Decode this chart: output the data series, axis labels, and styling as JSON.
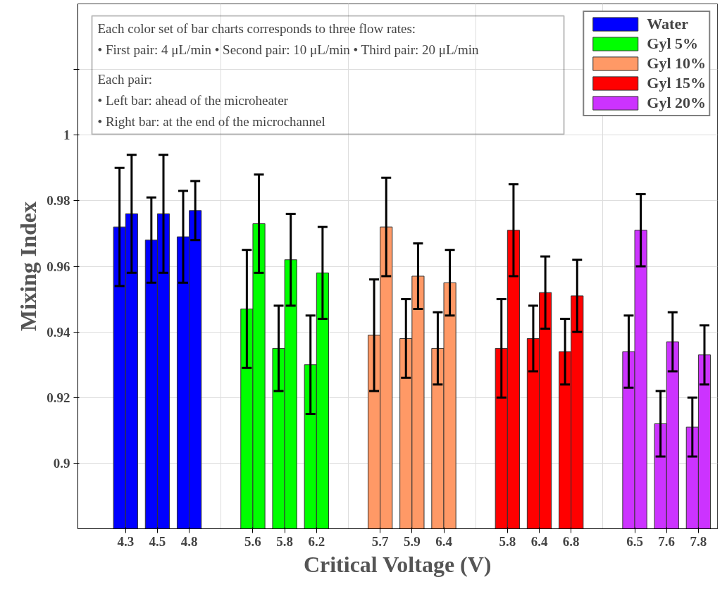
{
  "chart_data": {
    "type": "bar",
    "xlabel": "Critical Voltage (V)",
    "ylabel": "Mixing Index",
    "categories": [
      "4.3",
      "4.5",
      "4.8",
      null,
      "5.6",
      "5.8",
      "6.2",
      null,
      "5.7",
      "5.9",
      "6.4",
      null,
      "5.8",
      "6.4",
      "6.8",
      null,
      "6.5",
      "7.6",
      "7.8"
    ],
    "ylim": [
      0.88,
      1.04
    ],
    "yticks": [
      0.9,
      0.92,
      0.94,
      0.96,
      0.98,
      1,
      {
        "value": 1.02,
        "label": null
      }
    ],
    "grid": true,
    "legend": "top right",
    "annotations": [
      "Each color set of bar charts corresponds to three flow rates:",
      "• First pair: 4 μL/min     • Second pair: 10 μL/min     • Third pair: 20 μL/min",
      "Each pair:",
      "• Left bar: ahead of the microheater",
      "• Right bar: at the end of the microchannel"
    ],
    "series": [
      {
        "name": "Water",
        "color": "#0000ff",
        "values": [
          0.972,
          0.968,
          0.969,
          null,
          null,
          null,
          null,
          null,
          null,
          null,
          null,
          null,
          null,
          null,
          null,
          null,
          null,
          null,
          null
        ],
        "errors": [
          0.018,
          0.013,
          0.014,
          null,
          null,
          null,
          null,
          null,
          null,
          null,
          null,
          null,
          null,
          null,
          null,
          null,
          null,
          null,
          null
        ]
      },
      {
        "color": "#0000ff",
        "values": [
          0.976,
          0.976,
          0.977,
          null,
          null,
          null,
          null,
          null,
          null,
          null,
          null,
          null,
          null,
          null,
          null,
          null,
          null,
          null,
          null
        ],
        "errors": [
          0.018,
          0.018,
          0.009,
          null,
          null,
          null,
          null,
          null,
          null,
          null,
          null,
          null,
          null,
          null,
          null,
          null,
          null,
          null,
          null
        ]
      },
      {
        "name": "Gyl 5%",
        "color": "#00ff00",
        "values": [
          null,
          null,
          null,
          null,
          0.947,
          0.935,
          0.93,
          null,
          null,
          null,
          null,
          null,
          null,
          null,
          null,
          null,
          null,
          null,
          null
        ],
        "errors": [
          null,
          null,
          null,
          null,
          0.018,
          0.013,
          0.015,
          null,
          null,
          null,
          null,
          null,
          null,
          null,
          null,
          null,
          null,
          null,
          null
        ]
      },
      {
        "color": "#00ff00",
        "values": [
          null,
          null,
          null,
          null,
          0.973,
          0.962,
          0.958,
          null,
          null,
          null,
          null,
          null,
          null,
          null,
          null,
          null,
          null,
          null,
          null
        ],
        "errors": [
          null,
          null,
          null,
          null,
          0.015,
          0.014,
          0.014,
          null,
          null,
          null,
          null,
          null,
          null,
          null,
          null,
          null,
          null,
          null,
          null
        ]
      },
      {
        "name": "Gyl 10%",
        "color": "#ff9966",
        "values": [
          null,
          null,
          null,
          null,
          null,
          null,
          null,
          null,
          0.939,
          0.938,
          0.935,
          null,
          null,
          null,
          null,
          null,
          null,
          null,
          null
        ],
        "errors": [
          null,
          null,
          null,
          null,
          null,
          null,
          null,
          null,
          0.017,
          0.012,
          0.011,
          null,
          null,
          null,
          null,
          null,
          null,
          null,
          null
        ]
      },
      {
        "color": "#ff9966",
        "values": [
          null,
          null,
          null,
          null,
          null,
          null,
          null,
          null,
          0.972,
          0.957,
          0.955,
          null,
          null,
          null,
          null,
          null,
          null,
          null,
          null
        ],
        "errors": [
          null,
          null,
          null,
          null,
          null,
          null,
          null,
          null,
          0.015,
          0.01,
          0.01,
          null,
          null,
          null,
          null,
          null,
          null,
          null,
          null
        ]
      },
      {
        "name": "Gyl 15%",
        "color": "#ff0000",
        "values": [
          null,
          null,
          null,
          null,
          null,
          null,
          null,
          null,
          null,
          null,
          null,
          null,
          0.935,
          0.938,
          0.934,
          null,
          null,
          null,
          null
        ],
        "errors": [
          null,
          null,
          null,
          null,
          null,
          null,
          null,
          null,
          null,
          null,
          null,
          null,
          0.015,
          0.01,
          0.01,
          null,
          null,
          null,
          null
        ]
      },
      {
        "color": "#ff0000",
        "values": [
          null,
          null,
          null,
          null,
          null,
          null,
          null,
          null,
          null,
          null,
          null,
          null,
          0.971,
          0.952,
          0.951,
          null,
          null,
          null,
          null
        ],
        "errors": [
          null,
          null,
          null,
          null,
          null,
          null,
          null,
          null,
          null,
          null,
          null,
          null,
          0.014,
          0.011,
          0.011,
          null,
          null,
          null,
          null
        ]
      },
      {
        "name": "Gyl 20%",
        "color": "#cc33ff",
        "values": [
          null,
          null,
          null,
          null,
          null,
          null,
          null,
          null,
          null,
          null,
          null,
          null,
          null,
          null,
          null,
          null,
          0.934,
          0.912,
          0.911
        ],
        "errors": [
          null,
          null,
          null,
          null,
          null,
          null,
          null,
          null,
          null,
          null,
          null,
          null,
          null,
          null,
          null,
          null,
          0.011,
          0.01,
          0.009
        ]
      },
      {
        "color": "#cc33ff",
        "values": [
          null,
          null,
          null,
          null,
          null,
          null,
          null,
          null,
          null,
          null,
          null,
          null,
          null,
          null,
          null,
          null,
          0.971,
          0.937,
          0.933
        ],
        "errors": [
          null,
          null,
          null,
          null,
          null,
          null,
          null,
          null,
          null,
          null,
          null,
          null,
          null,
          null,
          null,
          null,
          0.011,
          0.009,
          0.009
        ]
      }
    ]
  }
}
